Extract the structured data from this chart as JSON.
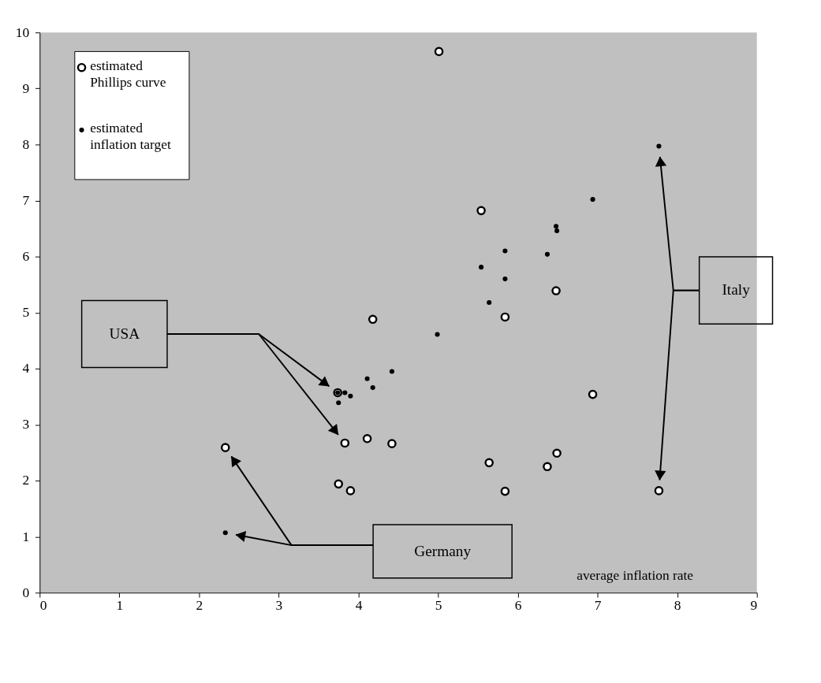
{
  "chart_data": {
    "type": "scatter",
    "xlabel": "average inflation rate",
    "xlim": [
      0,
      9
    ],
    "xticks": [
      0,
      1,
      2,
      3,
      4,
      5,
      6,
      7,
      8,
      9
    ],
    "ylim": [
      0,
      10
    ],
    "yticks": [
      0,
      1,
      2,
      3,
      4,
      5,
      6,
      7,
      8,
      9,
      10
    ],
    "grid": false,
    "legend": "top left",
    "marker": "circle",
    "series": [
      {
        "name": "estimated\nPhillips curve",
        "color": "#ffffff",
        "x": [
          2.33,
          3.74,
          3.75,
          3.83,
          3.9,
          4.11,
          4.18,
          4.42,
          5.01,
          5.54,
          5.64,
          5.84,
          5.84,
          6.37,
          6.48,
          6.49,
          6.94,
          7.77
        ],
        "values": [
          2.59,
          3.57,
          1.94,
          2.67,
          1.82,
          2.75,
          4.88,
          2.66,
          9.66,
          6.82,
          2.32,
          4.92,
          1.81,
          2.25,
          5.39,
          2.49,
          3.54,
          1.82
        ]
      },
      {
        "name": "estimated\ninflation target",
        "color": "#000000",
        "x": [
          2.33,
          3.74,
          3.75,
          3.83,
          3.9,
          4.11,
          4.18,
          4.42,
          4.99,
          5.54,
          5.64,
          5.84,
          5.84,
          6.37,
          6.48,
          6.49,
          6.94,
          7.77
        ],
        "values": [
          1.07,
          3.57,
          3.39,
          3.57,
          3.51,
          3.82,
          3.66,
          3.95,
          4.61,
          5.81,
          5.18,
          6.1,
          5.6,
          6.04,
          6.54,
          6.46,
          7.02,
          7.97
        ]
      }
    ],
    "annotations": [
      "USA",
      "Italy",
      "Germany"
    ]
  }
}
